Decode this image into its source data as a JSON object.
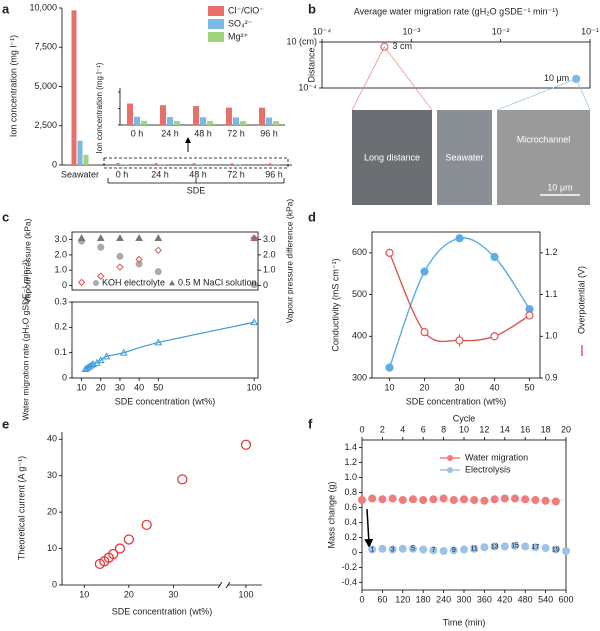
{
  "chart_data": [
    {
      "panel": "a",
      "type": "bar",
      "categories": [
        "Seawater",
        "0 h",
        "24 h",
        "48 h",
        "72 h",
        "96 h"
      ],
      "series": [
        {
          "name": "Cl⁻/ClO⁻",
          "color": "#e8706b",
          "values": [
            9850,
            130,
            120,
            115,
            105,
            105
          ]
        },
        {
          "name": "SO₄²⁻",
          "color": "#7ab8e6",
          "values": [
            1550,
            50,
            48,
            47,
            46,
            45
          ]
        },
        {
          "name": "Mg²⁺",
          "color": "#a2d47e",
          "values": [
            650,
            25,
            24,
            24,
            23,
            23
          ]
        }
      ],
      "y_label": "Ion concentration (mg l⁻¹)",
      "x_label": "SDE",
      "ylim": [
        0,
        10000
      ],
      "yticks": [
        0,
        {
          "value": 2500,
          "label": "2,500"
        },
        {
          "value": 5000,
          "label": "5,000"
        },
        {
          "value": 7500,
          "label": "7,500"
        },
        {
          "value": 10000,
          "label": "10,000"
        }
      ],
      "inset": {
        "y_label": "Ion concentration (mg l⁻¹)",
        "categories": [
          "0 h",
          "24 h",
          "48 h",
          "72 h",
          "96 h"
        ],
        "ylim": [
          0,
          200
        ]
      }
    },
    {
      "panel": "b",
      "type": "scatter",
      "x_label": "Average water migration rate (gH₂O gSDE⁻¹ min⁻¹)",
      "y_label": "Distance",
      "xscale": "log",
      "yscale": "log",
      "xlim": [
        0.0001,
        0.1
      ],
      "xticks": [
        {
          "value": 0.0001,
          "label": "10⁻⁴"
        },
        {
          "value": 0.001,
          "label": "10⁻³"
        },
        {
          "value": 0.01,
          "label": "10⁻²"
        },
        {
          "value": 0.1,
          "label": "10⁻¹"
        }
      ],
      "ylim": [
        0.0001,
        10
      ],
      "yticks": [
        {
          "value": 10,
          "label": "10 (cm)"
        },
        {
          "value": 0.0001,
          "label": "10⁻⁴"
        }
      ],
      "x": [
        0.0005,
        0.07
      ],
      "values": [
        3,
        0.001
      ],
      "labels": [
        "3 cm",
        "10 μm"
      ],
      "colors": [
        "#e8706b",
        "#7ab8e6"
      ],
      "photos": [
        "Long distance",
        "Seawater",
        "Microchannel"
      ],
      "scale_bar": "10 μm"
    },
    {
      "panel": "c",
      "type": "scatter",
      "x_label": "SDE concentration (wt%)",
      "xlim": [
        5,
        102
      ],
      "xticks": [
        10,
        20,
        30,
        40,
        50,
        100
      ],
      "top": {
        "y_label": "Vapour pressure (kPa)",
        "y2_label": "Vapour pressure difference (kPa)",
        "ylim": [
          -0.3,
          3.5
        ],
        "yticks": [
          0,
          {
            "value": 1,
            "label": "1.0"
          },
          {
            "value": 2,
            "label": "2.0"
          },
          {
            "value": 3,
            "label": "3.0"
          }
        ],
        "y2lim": [
          -0.3,
          3.5
        ],
        "y2ticks": [
          0,
          {
            "value": 1,
            "label": "1.0"
          },
          {
            "value": 2,
            "label": "2.0"
          },
          {
            "value": 3,
            "label": "3.0"
          }
        ],
        "x": [
          10,
          20,
          30,
          40,
          50,
          100
        ],
        "series": [
          {
            "name": "KOH electrolyte",
            "color": "#aaaaaa",
            "marker": "circle",
            "values": [
              2.9,
              2.5,
              1.9,
              1.4,
              0.9,
              0.05
            ]
          },
          {
            "name": "0.5 M NaCl solution",
            "color": "#777777",
            "marker": "triangle",
            "values": [
              3.1,
              3.1,
              3.1,
              3.1,
              3.1,
              3.1
            ]
          },
          {
            "color": "#e05550",
            "marker": "diamond",
            "axis": "y2",
            "values": [
              0.2,
              0.6,
              1.2,
              1.7,
              2.3,
              3.1
            ]
          }
        ]
      },
      "bottom": {
        "y_label": "Water migration rate (gH₂O gSDE⁻¹ min⁻¹)",
        "ylim": [
          0,
          0.3
        ],
        "yticks": [
          0,
          0.1,
          0.2,
          0.3
        ],
        "x": [
          12,
          13,
          14,
          15,
          16,
          18,
          20,
          23,
          32,
          50,
          100
        ],
        "values": [
          0.035,
          0.04,
          0.045,
          0.05,
          0.055,
          0.06,
          0.07,
          0.085,
          0.1,
          0.14,
          0.22
        ],
        "color": "#3a9ad9"
      }
    },
    {
      "panel": "d",
      "type": "line",
      "x_label": "SDE concentration (wt%)",
      "y_label": "Conductivity (mS cm⁻¹)",
      "y2_label": "Overpotential (V)",
      "x": [
        10,
        20,
        30,
        40,
        50
      ],
      "xlim": [
        5,
        53
      ],
      "xticks": [
        10,
        20,
        30,
        40,
        50
      ],
      "ylim": [
        300,
        650
      ],
      "yticks": [
        300,
        400,
        500,
        600
      ],
      "y2lim": [
        0.9,
        1.25
      ],
      "y2ticks": [
        0.9,
        {
          "value": 1,
          "label": "1.0"
        },
        1.1,
        1.2
      ],
      "series": [
        {
          "color": "#5aaee6",
          "values": [
            325,
            555,
            635,
            590,
            465
          ]
        },
        {
          "color": "#e05550",
          "axis": "y2",
          "values": [
            1.2,
            1.01,
            0.99,
            1.0,
            1.05
          ],
          "errors": [
            0.01,
            0.005,
            0.015,
            0.01,
            0.005
          ]
        }
      ]
    },
    {
      "panel": "e",
      "type": "scatter",
      "x_label": "SDE concentration (wt%)",
      "y_label": "Theoretical current (A g⁻¹)",
      "x": [
        13.5,
        14.5,
        15.5,
        16.5,
        18,
        20,
        24,
        32,
        100
      ],
      "values": [
        5.8,
        6.5,
        7.5,
        8.5,
        10,
        12.5,
        16.5,
        29,
        38.5
      ],
      "xlim": [
        5,
        110
      ],
      "x_break": [
        40,
        90
      ],
      "xticks": [
        10,
        20,
        30,
        100
      ],
      "ylim": [
        0,
        42
      ],
      "yticks": [
        0,
        10,
        20,
        30,
        40
      ],
      "color": "#e03a3a"
    },
    {
      "panel": "f",
      "type": "scatter",
      "x_label": "Time (min)",
      "x2_label": "Cycle",
      "y_label": "Mass change (g)",
      "xlim": [
        0,
        600
      ],
      "xticks": [
        0,
        60,
        120,
        180,
        240,
        300,
        360,
        420,
        480,
        540,
        600
      ],
      "x2lim": [
        0,
        20
      ],
      "x2ticks": [
        0,
        2,
        4,
        6,
        8,
        10,
        12,
        14,
        16,
        18,
        20
      ],
      "ylim": [
        -0.5,
        1.5
      ],
      "yticks": [
        -0.4,
        -0.2,
        0,
        0.2,
        0.4,
        0.6,
        0.8,
        {
          "value": 1,
          "label": "1.0"
        },
        1.2,
        1.4
      ],
      "series": [
        {
          "name": "Water migration",
          "color": "#f07c7c",
          "x": [
            0,
            30,
            60,
            90,
            120,
            150,
            180,
            210,
            240,
            270,
            300,
            330,
            360,
            390,
            420,
            450,
            480,
            510,
            540,
            570
          ],
          "values": [
            0.7,
            0.72,
            0.71,
            0.72,
            0.7,
            0.71,
            0.7,
            0.71,
            0.72,
            0.7,
            0.71,
            0.7,
            0.69,
            0.71,
            0.72,
            0.72,
            0.71,
            0.7,
            0.69,
            0.68
          ]
        },
        {
          "name": "Electrolysis",
          "color": "#9cc3e6",
          "x": [
            30,
            60,
            90,
            120,
            150,
            180,
            210,
            240,
            270,
            300,
            330,
            360,
            390,
            420,
            450,
            480,
            510,
            540,
            570,
            600
          ],
          "values": [
            0.04,
            0.05,
            0.04,
            0.05,
            0.05,
            0.04,
            0.03,
            0.02,
            0.03,
            0.04,
            0.05,
            0.07,
            0.08,
            0.08,
            0.09,
            0.08,
            0.07,
            0.06,
            0.04,
            0.02
          ]
        }
      ],
      "cycle_labels": [
        "1",
        "3",
        "5",
        "7",
        "9",
        "11",
        "13",
        "15",
        "17",
        "19"
      ]
    }
  ]
}
